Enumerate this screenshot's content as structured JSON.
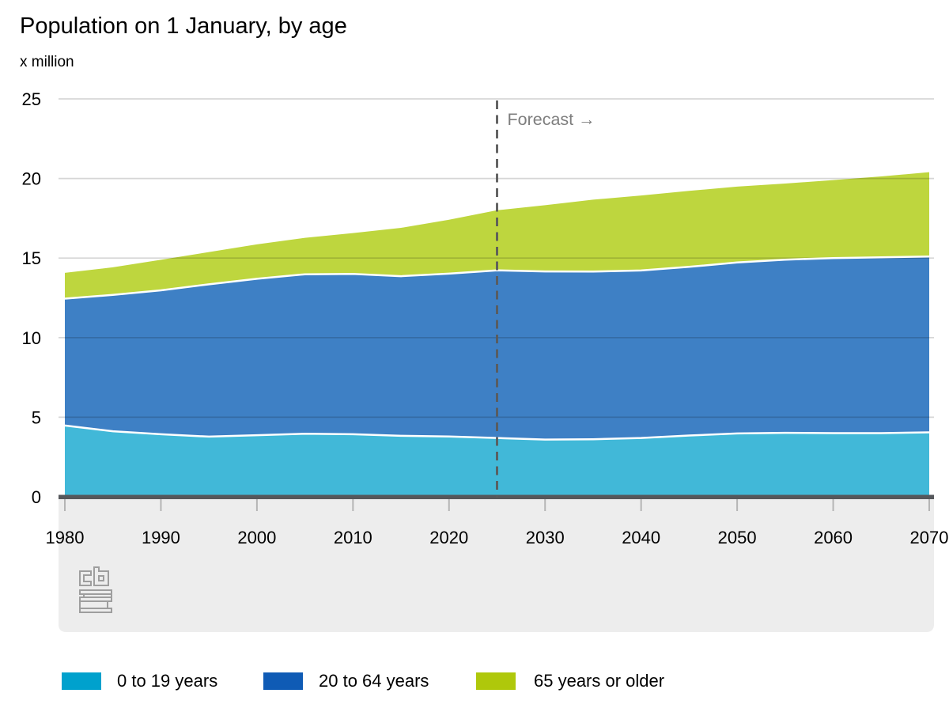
{
  "chart_data": {
    "type": "area",
    "stacked": true,
    "title": "Population on 1 January, by age",
    "unit_label": "x million",
    "forecast_label": "Forecast →",
    "forecast_year": 2025,
    "x": [
      1980,
      1985,
      1990,
      1995,
      2000,
      2005,
      2010,
      2015,
      2020,
      2025,
      2030,
      2035,
      2040,
      2045,
      2050,
      2055,
      2060,
      2065,
      2070
    ],
    "series": [
      {
        "name": "0 to 19 years",
        "color_fill": "#41b8d8",
        "color_legend": "#00a1cd",
        "values": [
          4.48,
          4.12,
          3.93,
          3.78,
          3.87,
          3.96,
          3.93,
          3.83,
          3.79,
          3.7,
          3.6,
          3.62,
          3.7,
          3.85,
          3.98,
          4.02,
          4.0,
          4.0,
          4.05
        ]
      },
      {
        "name": "20 to 64 years",
        "color_fill": "#3e80c5",
        "color_legend": "#0f5bb5",
        "values": [
          7.97,
          8.57,
          9.04,
          9.57,
          9.83,
          10.02,
          10.07,
          10.03,
          10.23,
          10.53,
          10.56,
          10.53,
          10.52,
          10.6,
          10.74,
          10.88,
          11.0,
          11.05,
          11.05
        ]
      },
      {
        "name": "65 years or older",
        "color_fill": "#bed63e",
        "color_legend": "#afc80b",
        "values": [
          1.62,
          1.73,
          1.92,
          2.03,
          2.16,
          2.29,
          2.57,
          3.04,
          3.39,
          3.77,
          4.16,
          4.52,
          4.71,
          4.77,
          4.77,
          4.78,
          4.9,
          5.08,
          5.3
        ]
      }
    ],
    "x_ticks": [
      1980,
      1990,
      2000,
      2010,
      2020,
      2030,
      2040,
      2050,
      2060,
      2070
    ],
    "y_ticks": [
      0,
      5,
      10,
      15,
      20,
      25
    ],
    "xlim": [
      1980,
      2070
    ],
    "ylim": [
      0,
      25
    ],
    "grid": true,
    "legend_position": "bottom",
    "colors": {
      "axis_baseline": "#55575b",
      "bottom_band": "#ededed",
      "tick_mark": "#b5b5b5",
      "gridline": "rgba(0,0,0,0.16)",
      "forecast_line": "#5a5a5a",
      "forecast_text": "#7e7e7e",
      "separator": "#ffffff",
      "logo": "#9e9e9e"
    }
  }
}
